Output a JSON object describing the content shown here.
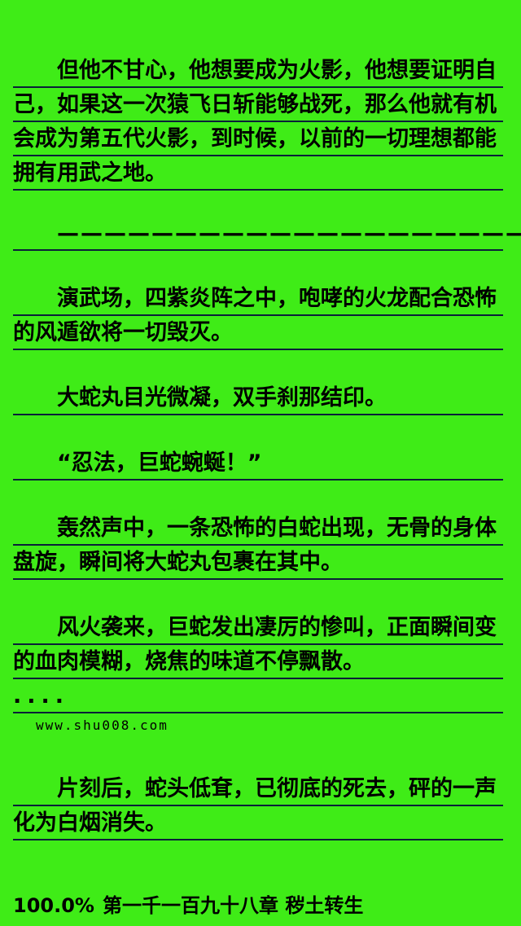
{
  "colors": {
    "background": "#3FEC17",
    "text": "#000000",
    "rule": "#0a2038"
  },
  "content": {
    "blocks": [
      {
        "type": "body",
        "text": "但他不甘心，他想要成为火影，他想要证明自己，如果这一次猿飞日斩能够战死，那么他就有机会成为第五代火影，到时候，以前的一切理想都能拥有用武之地。"
      },
      {
        "type": "separator",
        "text": "——————————————————————————"
      },
      {
        "type": "body",
        "text": "演武场，四紫炎阵之中，咆哮的火龙配合恐怖的风遁欲将一切毁灭。"
      },
      {
        "type": "body",
        "text": "大蛇丸目光微凝，双手刹那结印。"
      },
      {
        "type": "body",
        "text": "“忍法，巨蛇蜿蜒！”"
      },
      {
        "type": "body",
        "text": "轰然声中，一条恐怖的白蛇出现，无骨的身体盘旋，瞬间将大蛇丸包裹在其中。"
      },
      {
        "type": "body",
        "text": "风火袭来，巨蛇发出凄厉的惨叫，正面瞬间变的血肉模糊，烧焦的味道不停飘散。"
      },
      {
        "type": "dots",
        "text": "...."
      },
      {
        "type": "watermark",
        "text": "www.shu008.com"
      },
      {
        "type": "body",
        "text": "片刻后，蛇头低耷，已彻底的死去，砰的一声化为白烟消失。"
      }
    ]
  },
  "footer": {
    "progress": "100.0%",
    "chapter": "第一千一百九十八章 秽土转生"
  }
}
